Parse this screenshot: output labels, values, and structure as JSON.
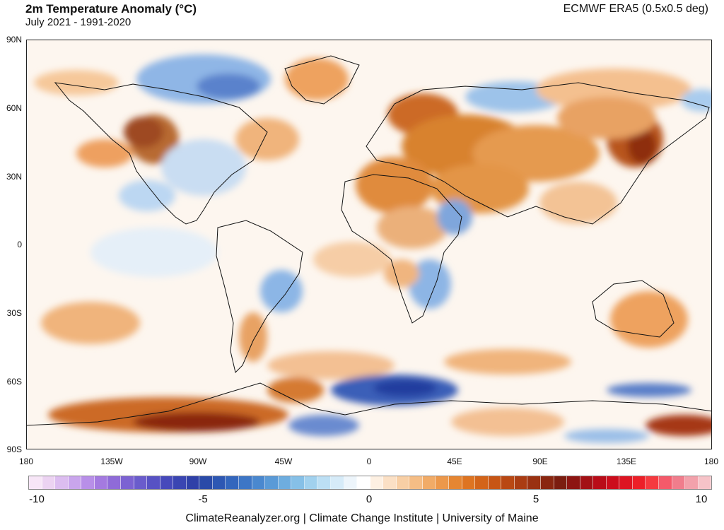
{
  "header": {
    "title": "2m Temperature Anomaly (°C)",
    "subtitle": "July 2021 - 1991-2020",
    "source": "ECMWF ERA5 (0.5x0.5 deg)"
  },
  "map": {
    "latitude_labels": [
      "90N",
      "60N",
      "30N",
      "0",
      "30S",
      "60S",
      "90S"
    ],
    "longitude_labels": [
      "180",
      "135W",
      "90W",
      "45W",
      "0",
      "45E",
      "90E",
      "135E",
      "180"
    ]
  },
  "colorbar": {
    "tick_labels": [
      "-10",
      "-5",
      "0",
      "5",
      "10"
    ],
    "colors": [
      "#f7e6f7",
      "#ecd3f2",
      "#dcbdf0",
      "#c9a5ec",
      "#b88fe8",
      "#a47ae0",
      "#8f6bd8",
      "#7c62d2",
      "#6a5ccc",
      "#5752c4",
      "#4649bb",
      "#3a45b2",
      "#2f40a8",
      "#2a4aa8",
      "#2d57b3",
      "#3366bd",
      "#3d76c6",
      "#4a88cf",
      "#5a9ad7",
      "#6eaddf",
      "#86c0e7",
      "#a1d1ee",
      "#bcdff4",
      "#d6ebf8",
      "#edf5fb",
      "#ffffff",
      "#fdf0e2",
      "#fbe0c5",
      "#f8cfa5",
      "#f5bd85",
      "#f1ab67",
      "#ec984b",
      "#e68632",
      "#de7421",
      "#d36419",
      "#c75515",
      "#b94813",
      "#aa3c12",
      "#9a3111",
      "#8a2610",
      "#7b1d10",
      "#8d1512",
      "#a31015",
      "#b90c18",
      "#cc0d1c",
      "#dd1522",
      "#ec1f28",
      "#f53a3f",
      "#f45a6a",
      "#f07d8c",
      "#f2a1ab",
      "#f6c3c8"
    ]
  },
  "footer": {
    "credit": "ClimateReanalyzer.org | Climate Change Institute | University of Maine"
  }
}
